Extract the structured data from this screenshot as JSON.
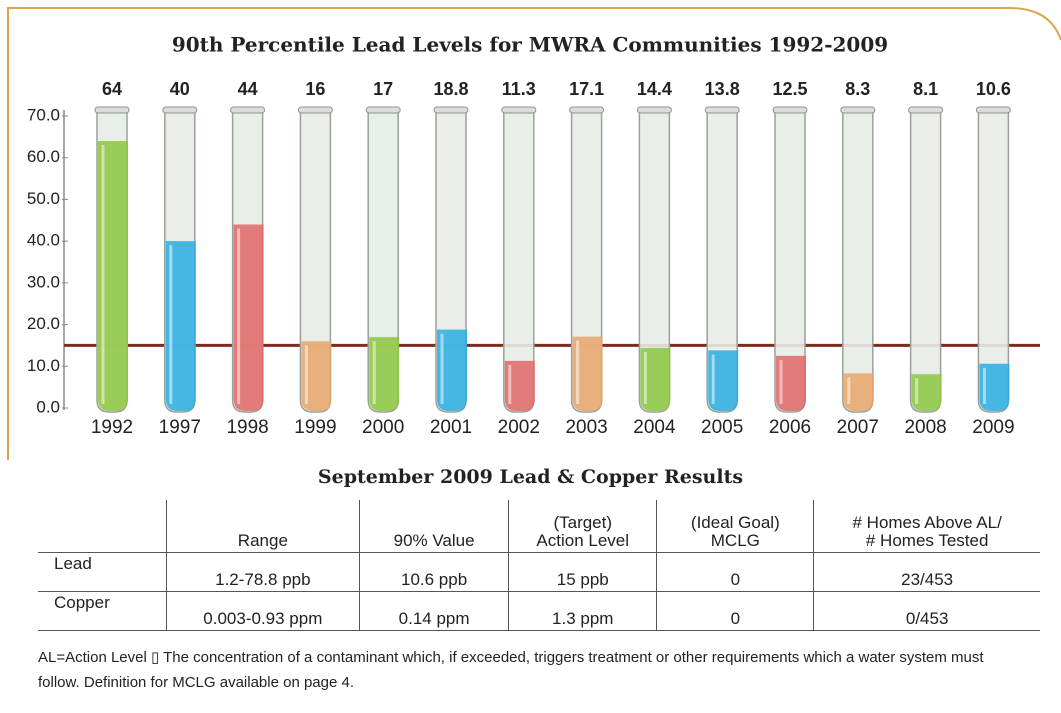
{
  "chart_data": {
    "type": "bar",
    "title": "90th Percentile Lead Levels for MWRA Communities 1992-2009",
    "categories": [
      "1992",
      "1997",
      "1998",
      "1999",
      "2000",
      "2001",
      "2002",
      "2003",
      "2004",
      "2005",
      "2006",
      "2007",
      "2008",
      "2009"
    ],
    "values": [
      64,
      40,
      44,
      16,
      17,
      18.8,
      11.3,
      17.1,
      14.4,
      13.8,
      12.5,
      8.3,
      8.1,
      10.6
    ],
    "colors": [
      "#8cc63f",
      "#29abe2",
      "#e06666",
      "#e8a56a",
      "#8cc63f",
      "#29abe2",
      "#e06666",
      "#e8a56a",
      "#8cc63f",
      "#29abe2",
      "#e06666",
      "#e8a56a",
      "#8cc63f",
      "#29abe2"
    ],
    "reference_line": 15,
    "reference_color": "#7d2b1f",
    "ylim": [
      0,
      70
    ],
    "yticks": [
      {
        "value": 0,
        "label": "0.0"
      },
      {
        "value": 10,
        "label": "10.0"
      },
      {
        "value": 20,
        "label": "20.0"
      },
      {
        "value": 30,
        "label": "30.0"
      },
      {
        "value": 40,
        "label": "40.0"
      },
      {
        "value": 50,
        "label": "50.0"
      },
      {
        "value": 60,
        "label": "60.0"
      },
      {
        "value": 70,
        "label": "70.0"
      }
    ]
  },
  "table": {
    "title": "September 2009 Lead & Copper Results",
    "header": [
      "Range",
      "90% Value",
      "(Target)\nAction Level",
      "(Ideal Goal)\nMCLG",
      "# Homes Above AL/\n# Homes Tested"
    ],
    "rows": [
      [
        "Lead",
        "1.2-78.8 ppb",
        "10.6 ppb",
        "15 ppb",
        "0",
        "23/453"
      ],
      [
        "Copper",
        "0.003-0.93 ppm",
        "0.14 ppm",
        "1.3 ppm",
        "0",
        "0/453"
      ]
    ]
  },
  "footnote": "AL=Action Level ▯ The concentration of a contaminant which, if exceeded, triggers treatment or other requirements which a water system must follow. Definition for MCLG available on page 4."
}
